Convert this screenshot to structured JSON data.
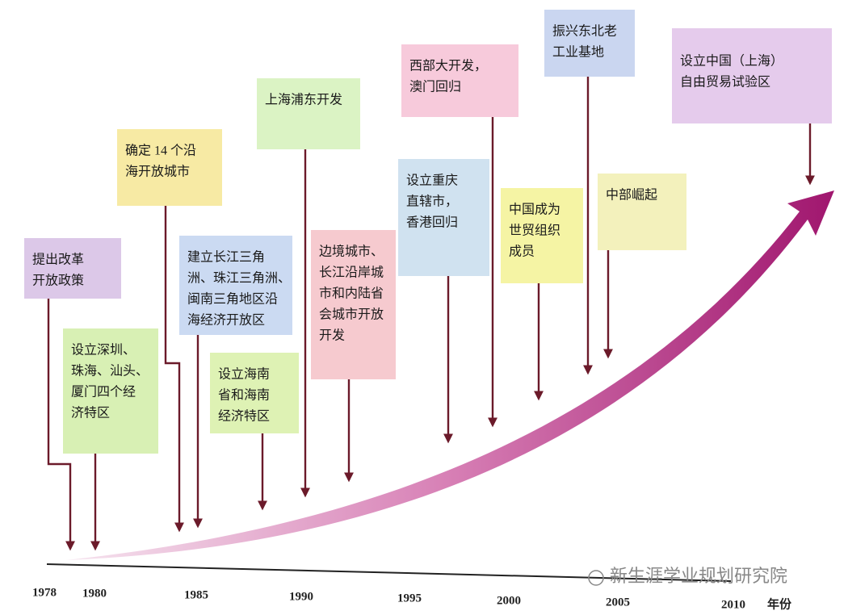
{
  "nodes": [
    {
      "lines": [
        "提出改革",
        "开放政策"
      ]
    },
    {
      "lines": [
        "设立深圳、",
        "珠海、汕头、",
        "厦门四个经",
        "济特区"
      ]
    },
    {
      "lines": [
        "确定 14 个沿",
        "海开放城市"
      ]
    },
    {
      "lines": [
        "建立长江三角",
        "洲、珠江三角洲、",
        "闽南三角地区沿",
        "海经济开放区"
      ]
    },
    {
      "lines": [
        "设立海南",
        "省和海南",
        "经济特区"
      ]
    },
    {
      "lines": [
        "上海浦东开发"
      ]
    },
    {
      "lines": [
        "边境城市、",
        "长江沿岸城",
        "市和内陆省",
        "会城市开放",
        "开发"
      ]
    },
    {
      "lines": [
        "设立重庆",
        "直辖市，",
        "香港回归"
      ]
    },
    {
      "lines": [
        "西部大开发，",
        "澳门回归"
      ]
    },
    {
      "lines": [
        "中国成为",
        "世贸组织",
        "成员"
      ]
    },
    {
      "lines": [
        "振兴东北老",
        "工业基地"
      ]
    },
    {
      "lines": [
        "中部崛起"
      ]
    },
    {
      "lines": [
        "设立中国（上海）",
        "自由贸易试验区"
      ]
    }
  ],
  "axis": {
    "years": [
      "1978",
      "1980",
      "1985",
      "1990",
      "1995",
      "2000",
      "2005",
      "2010"
    ],
    "label": "年份"
  },
  "watermark": "新生涯学业规划研究院"
}
